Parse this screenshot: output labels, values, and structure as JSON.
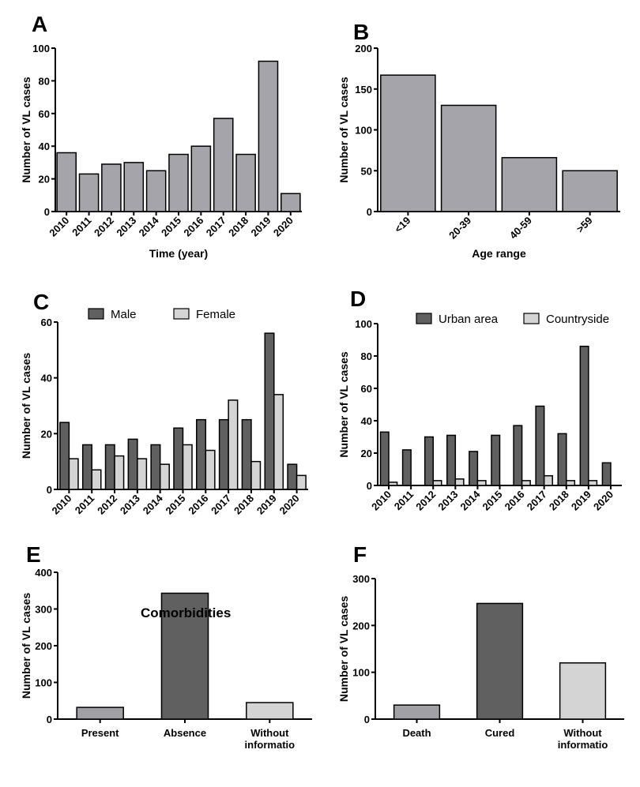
{
  "chart_data": [
    {
      "panel": "A",
      "type": "bar",
      "categories": [
        "2010",
        "2011",
        "2012",
        "2013",
        "2014",
        "2015",
        "2016",
        "2017",
        "2018",
        "2019",
        "2020"
      ],
      "series": [
        {
          "values": [
            36,
            23,
            29,
            30,
            25,
            35,
            40,
            57,
            35,
            92,
            11
          ],
          "color": "#a5a4aa"
        }
      ],
      "xlabel": "Time (year)",
      "ylabel": "Number of VL cases",
      "ylim": [
        0,
        100
      ],
      "yticks": [
        0,
        20,
        40,
        60,
        80,
        100
      ],
      "title": "",
      "rotate_labels": true
    },
    {
      "panel": "B",
      "type": "bar",
      "categories": [
        "<19",
        "20-39",
        "40-59",
        ">59"
      ],
      "series": [
        {
          "values": [
            167,
            130,
            66,
            50
          ],
          "color": "#a5a4aa"
        }
      ],
      "xlabel": "Age range",
      "ylabel": "Number of VL cases",
      "ylim": [
        0,
        200
      ],
      "yticks": [
        0,
        50,
        100,
        150,
        200
      ],
      "title": "",
      "rotate_labels": true
    },
    {
      "panel": "C",
      "type": "bar",
      "categories": [
        "2010",
        "2011",
        "2012",
        "2013",
        "2014",
        "2015",
        "2016",
        "2017",
        "2018",
        "2019",
        "2020"
      ],
      "series": [
        {
          "name": "Male",
          "values": [
            24,
            16,
            16,
            18,
            16,
            22,
            25,
            25,
            25,
            56,
            9
          ],
          "color": "#606060"
        },
        {
          "name": "Female",
          "values": [
            11,
            7,
            12,
            11,
            9,
            16,
            14,
            32,
            10,
            34,
            5
          ],
          "color": "#d4d4d4"
        }
      ],
      "xlabel": "",
      "ylabel": "Number of VL cases",
      "ylim": [
        0,
        60
      ],
      "yticks": [
        0,
        20,
        40,
        60
      ],
      "title": "",
      "legend": "top",
      "rotate_labels": true
    },
    {
      "panel": "D",
      "type": "bar",
      "categories": [
        "2010",
        "2011",
        "2012",
        "2013",
        "2014",
        "2015",
        "2016",
        "2017",
        "2018",
        "2019",
        "2020"
      ],
      "series": [
        {
          "name": "Urban area",
          "values": [
            33,
            22,
            30,
            31,
            21,
            31,
            37,
            49,
            32,
            86,
            14
          ],
          "color": "#606060"
        },
        {
          "name": "Countryside",
          "values": [
            2,
            0,
            3,
            4,
            3,
            0,
            3,
            6,
            3,
            3,
            0
          ],
          "color": "#d4d4d4"
        }
      ],
      "xlabel": "",
      "ylabel": "Number of VL cases",
      "ylim": [
        0,
        100
      ],
      "yticks": [
        0,
        20,
        40,
        60,
        80,
        100
      ],
      "title": "",
      "legend": "top",
      "rotate_labels": true
    },
    {
      "panel": "E",
      "type": "bar",
      "categories": [
        "Present",
        "Absence",
        "Without informatio"
      ],
      "series": [
        {
          "values": [
            32,
            343,
            45
          ],
          "colors": [
            "#a0a0a5",
            "#606060",
            "#d4d4d4"
          ]
        }
      ],
      "xlabel": "",
      "ylabel": "Number of VL cases",
      "ylim": [
        0,
        400
      ],
      "yticks": [
        0,
        100,
        200,
        300,
        400
      ],
      "title": "Comorbidities",
      "rotate_labels": false
    },
    {
      "panel": "F",
      "type": "bar",
      "categories": [
        "Death",
        "Cured",
        "Without informatio"
      ],
      "series": [
        {
          "values": [
            30,
            247,
            120
          ],
          "colors": [
            "#a0a0a5",
            "#606060",
            "#d4d4d4"
          ]
        }
      ],
      "xlabel": "",
      "ylabel": "Number of VL cases",
      "ylim": [
        0,
        300
      ],
      "yticks": [
        0,
        100,
        200,
        300
      ],
      "title": "",
      "rotate_labels": false
    }
  ]
}
